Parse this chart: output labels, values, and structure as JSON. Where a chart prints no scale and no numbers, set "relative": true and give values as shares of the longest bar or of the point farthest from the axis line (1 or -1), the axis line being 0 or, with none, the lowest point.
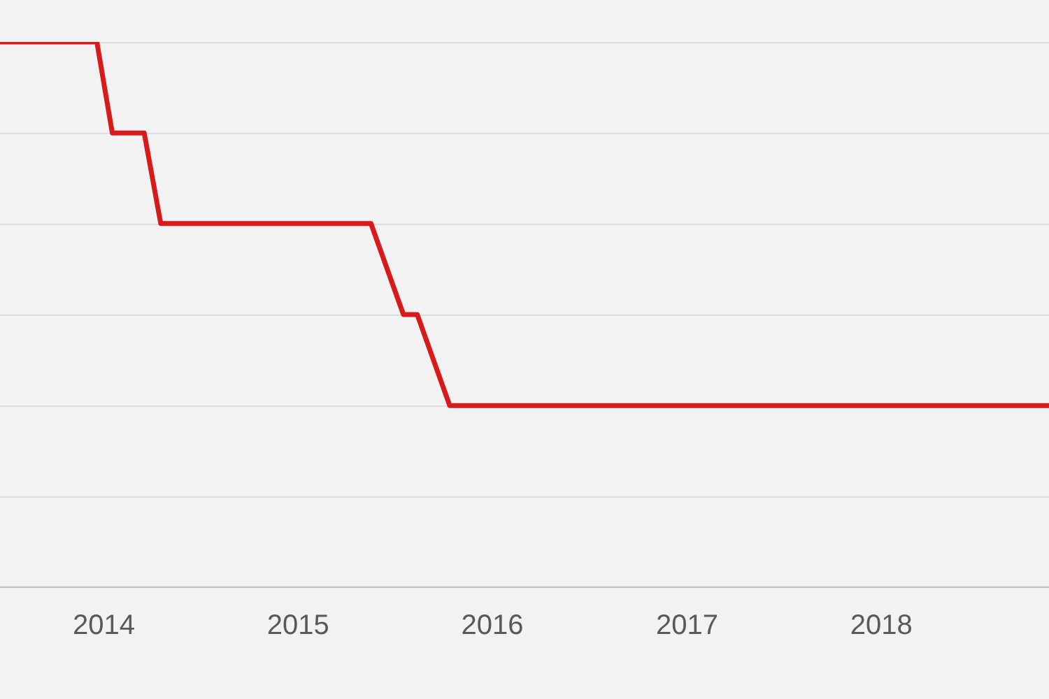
{
  "chart_data": {
    "type": "line",
    "relative": true,
    "grid": "y",
    "marker": "none",
    "line_style": "solid",
    "legend": false,
    "x": [
      "2013-06-20",
      "2013-12-19",
      "2014-01-17",
      "2014-03-18",
      "2014-04-18",
      "2015-05-18",
      "2015-07-18",
      "2015-08-13",
      "2015-10-13",
      "2018-11-12"
    ],
    "xlim": [
      "2013-06-20",
      "2018-11-12"
    ],
    "xticks": [
      "2014",
      "2015",
      "2016",
      "2017",
      "2018"
    ],
    "series": [
      {
        "color": "#d91a1a",
        "values": [
          1,
          1,
          0.833,
          0.833,
          0.667,
          0.667,
          0.5,
          0.5,
          0.333,
          0.333
        ]
      }
    ]
  }
}
